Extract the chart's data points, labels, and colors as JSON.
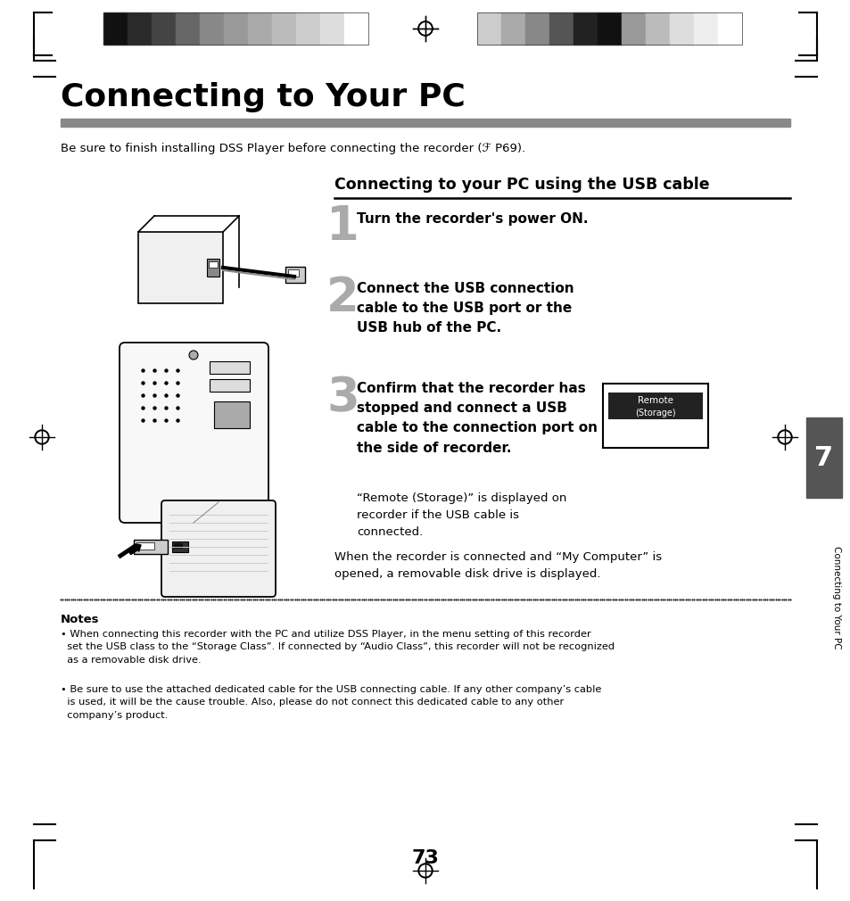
{
  "title": "Connecting to Your PC",
  "subtitle_bar_color": "#888888",
  "intro_text": "Be sure to finish installing DSS Player before connecting the recorder (ℱ P69).",
  "section_title": "Connecting to your PC using the USB cable",
  "step1_num": "1",
  "step1_text": "Turn the recorder's power ON.",
  "step2_num": "2",
  "step2_text": "Connect the USB connection\ncable to the USB port or the\nUSB hub of the PC.",
  "step3_num": "3",
  "step3_bold": "Confirm that the recorder has\nstopped and connect a USB\ncable to the connection port on\nthe side of recorder.",
  "step3_sub": "“Remote (Storage)” is displayed on\nrecorder if the USB cable is\nconnected.",
  "step3_after": "When the recorder is connected and “My Computer” is\nopened, a removable disk drive is displayed.",
  "notes_title": "Notes",
  "note1": "• When connecting this recorder with the PC and utilize DSS Player, in the menu setting of this recorder\n  set the USB class to the “Storage Class”. If connected by “Audio Class”, this recorder will not be recognized\n  as a removable disk drive.",
  "note2": "• Be sure to use the attached dedicated cable for the USB connecting cable. If any other company’s cable\n  is used, it will be the cause trouble. Also, please do not connect this dedicated cable to any other\n  company’s product.",
  "page_num": "73",
  "side_label": "Connecting to Your PC",
  "chapter_num": "7",
  "bg_color": "#ffffff",
  "text_color": "#000000",
  "colors_left": [
    "#111111",
    "#2a2a2a",
    "#444444",
    "#666666",
    "#888888",
    "#999999",
    "#aaaaaa",
    "#bbbbbb",
    "#cccccc",
    "#dddddd",
    "#ffffff"
  ],
  "colors_right": [
    "#cccccc",
    "#aaaaaa",
    "#888888",
    "#555555",
    "#222222",
    "#111111",
    "#999999",
    "#bbbbbb",
    "#dddddd",
    "#eeeeee",
    "#ffffff"
  ],
  "side_tab_color": "#555555"
}
